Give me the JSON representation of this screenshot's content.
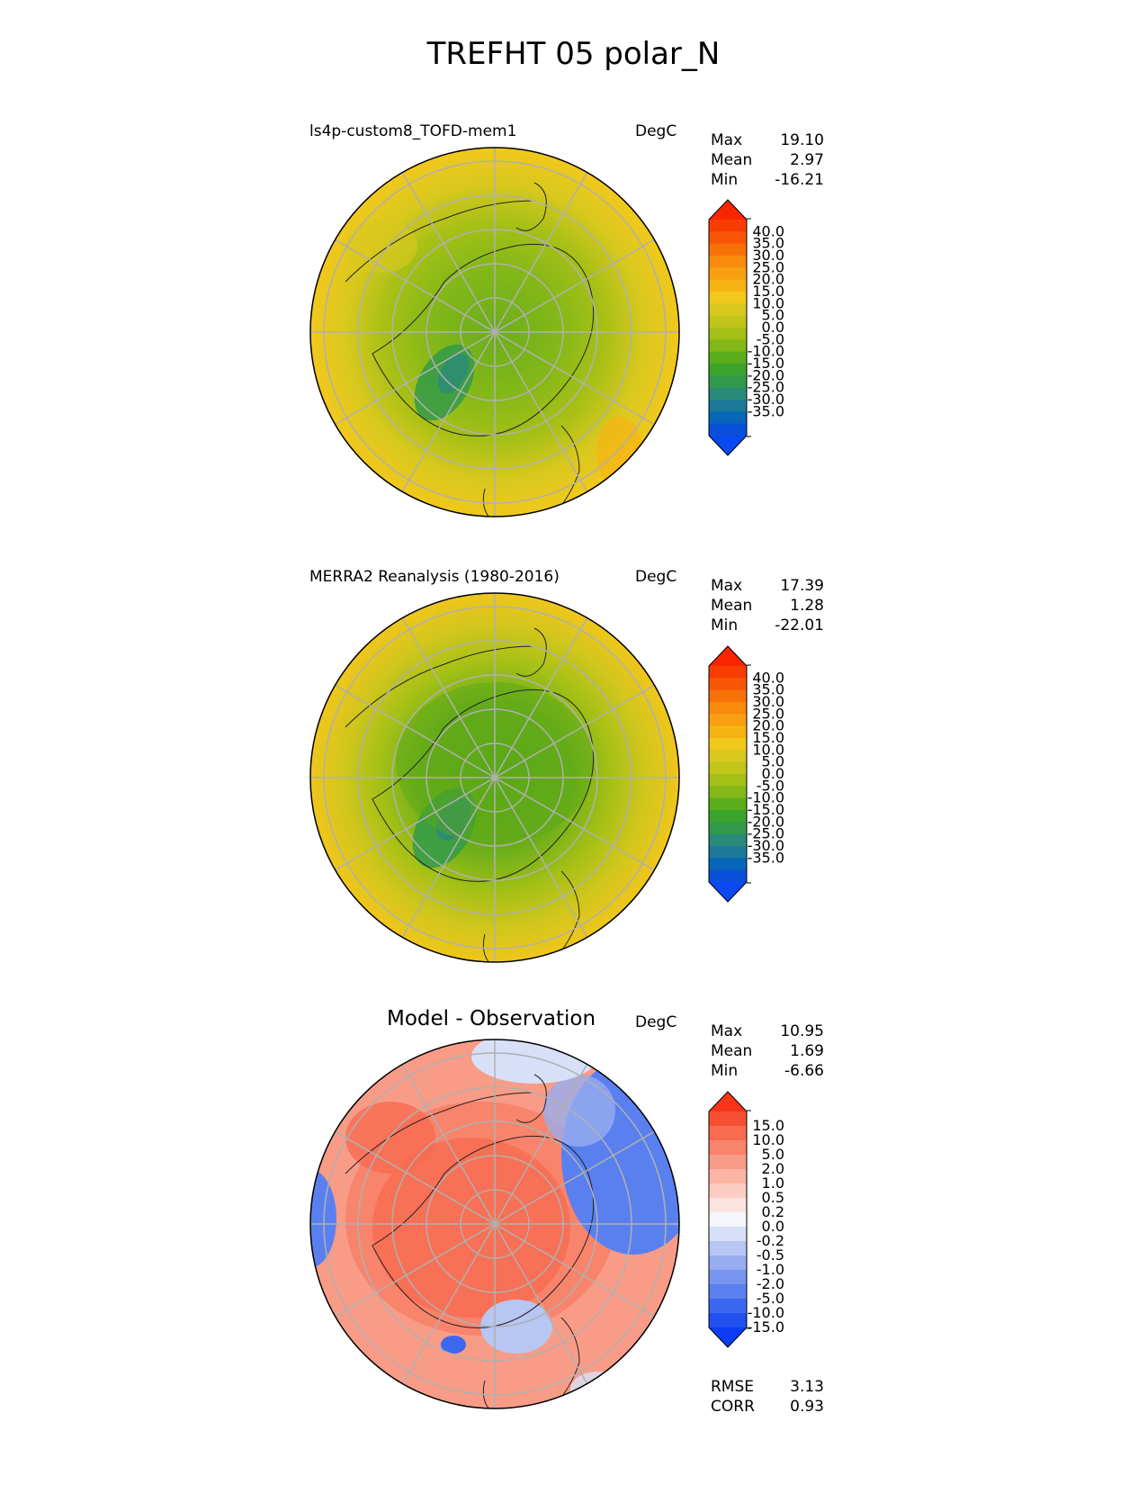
{
  "title": "TREFHT 05 polar_N",
  "panels": [
    {
      "title": "ls4p-custom8_TOFD-mem1",
      "units": "DegC",
      "stats": [
        {
          "label": "Max",
          "value": "19.10"
        },
        {
          "label": "Mean",
          "value": "2.97"
        },
        {
          "label": "Min",
          "value": "-16.21"
        }
      ],
      "colorbar": {
        "colors": [
          "#0a48f2",
          "#0850d8",
          "#0866b8",
          "#1c7a98",
          "#2a8a78",
          "#329a4a",
          "#3ca42a",
          "#5aae1c",
          "#84b818",
          "#a4c016",
          "#c2c41a",
          "#d8c81e",
          "#f2c81c",
          "#f6b414",
          "#f8a012",
          "#f88a0c",
          "#f87008",
          "#f85604",
          "#f83c02",
          "#f82600"
        ],
        "labels": [
          "40.0",
          "35.0",
          "30.0",
          "25.0",
          "20.0",
          "15.0",
          "10.0",
          "5.0",
          "0.0",
          "-5.0",
          "-10.0",
          "-15.0",
          "-20.0",
          "-25.0",
          "-30.0",
          "-35.0"
        ]
      }
    },
    {
      "title": "MERRA2 Reanalysis (1980-2016)",
      "units": "DegC",
      "stats": [
        {
          "label": "Max",
          "value": "17.39"
        },
        {
          "label": "Mean",
          "value": "1.28"
        },
        {
          "label": "Min",
          "value": "-22.01"
        }
      ],
      "colorbar": {
        "colors": [
          "#0a48f2",
          "#0850d8",
          "#0866b8",
          "#1c7a98",
          "#2a8a78",
          "#329a4a",
          "#3ca42a",
          "#5aae1c",
          "#84b818",
          "#a4c016",
          "#c2c41a",
          "#d8c81e",
          "#f2c81c",
          "#f6b414",
          "#f8a012",
          "#f88a0c",
          "#f87008",
          "#f85604",
          "#f83c02",
          "#f82600"
        ],
        "labels": [
          "40.0",
          "35.0",
          "30.0",
          "25.0",
          "20.0",
          "15.0",
          "10.0",
          "5.0",
          "0.0",
          "-5.0",
          "-10.0",
          "-15.0",
          "-20.0",
          "-25.0",
          "-30.0",
          "-35.0"
        ]
      }
    },
    {
      "title": "Model - Observation",
      "units": "DegC",
      "stats": [
        {
          "label": "Max",
          "value": "10.95"
        },
        {
          "label": "Mean",
          "value": "1.69"
        },
        {
          "label": "Min",
          "value": "-6.66"
        }
      ],
      "colorbar": {
        "colors": [
          "#0a3cf8",
          "#2050f0",
          "#3c68f0",
          "#5a80f0",
          "#7896f0",
          "#98acf0",
          "#b8c6f4",
          "#d8e0f8",
          "#f4f6fc",
          "#fce4e0",
          "#fcccc2",
          "#fcb4a4",
          "#f89c88",
          "#f8846c",
          "#f86c50",
          "#f85034",
          "#f83418"
        ],
        "labels": [
          "15.0",
          "10.0",
          "5.0",
          "2.0",
          "1.0",
          "0.5",
          "0.2",
          "0.0",
          "-0.2",
          "-0.5",
          "-1.0",
          "-2.0",
          "-5.0",
          "-10.0",
          "-15.0"
        ]
      },
      "metrics": [
        {
          "label": "RMSE",
          "value": "3.13"
        },
        {
          "label": "CORR",
          "value": "0.93"
        }
      ]
    }
  ]
}
